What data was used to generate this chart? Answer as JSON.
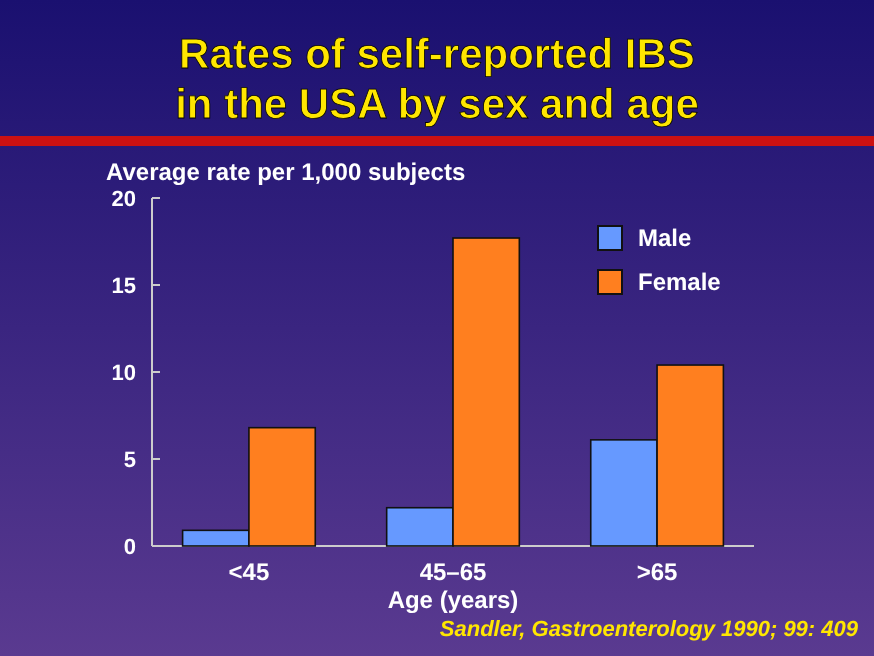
{
  "chart_data": {
    "type": "bar",
    "title": "Rates of self-reported IBS\nin the USA by sex and age",
    "ylabel": "Average rate per 1,000 subjects",
    "xlabel": "Age (years)",
    "categories": [
      "<45",
      "45–65",
      ">65"
    ],
    "series": [
      {
        "name": "Male",
        "color": "#6699ff",
        "values": [
          0.9,
          2.2,
          6.1
        ]
      },
      {
        "name": "Female",
        "color": "#ff7f1f",
        "values": [
          6.8,
          17.7,
          10.4
        ]
      }
    ],
    "ylim": [
      0,
      20
    ],
    "yticks": [
      0,
      5,
      10,
      15,
      20
    ],
    "grid": false,
    "legend": "top right",
    "annotations": [
      "Sandler, Gastroenterology 1990; 99: 409"
    ]
  }
}
